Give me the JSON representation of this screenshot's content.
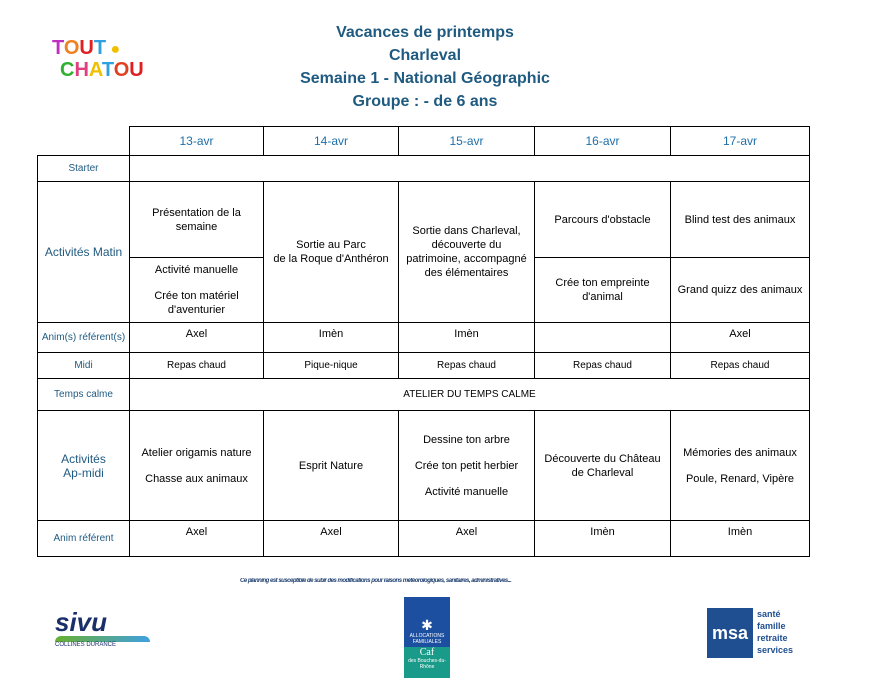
{
  "header": {
    "logo_text": "Les Tout Chatou",
    "lines": [
      "Vacances de printemps",
      "Charleval",
      "Semaine 1 - National Géographic",
      "Groupe : - de 6 ans"
    ]
  },
  "dates": [
    "13-avr",
    "14-avr",
    "15-avr",
    "16-avr",
    "17-avr"
  ],
  "rows": {
    "starter": "Starter",
    "matin": "Activités Matin",
    "anim": "Anim(s) référent(s)",
    "midi": "Midi",
    "calme": "Temps calme",
    "apmidi": "Activités Ap-midi",
    "animref": "Anim référent"
  },
  "matin": {
    "d1_top": "Présentation de la semaine",
    "d1_bottom": [
      "Activité manuelle",
      "Crée ton matériel d'aventurier"
    ],
    "d2": [
      "Sortie au Parc",
      "de la Roque d'Anthéron"
    ],
    "d3": "Sortie dans Charleval, découverte du patrimoine, accompagné des élémentaires",
    "d4_top": "Parcours d'obstacle",
    "d4_bottom": "Crée ton empreinte d'animal",
    "d5_top": "Blind test des animaux",
    "d5_bottom": "Grand quizz des animaux"
  },
  "anim_matin": [
    "Axel",
    "Imèn",
    "Imèn",
    "",
    "Axel"
  ],
  "midi": [
    "Repas chaud",
    "Pique-nique",
    "Repas chaud",
    "Repas chaud",
    "Repas chaud"
  ],
  "calme": "ATELIER DU TEMPS CALME",
  "apmidi": {
    "d1": [
      "Atelier origamis nature",
      "Chasse aux animaux"
    ],
    "d2": "Esprit Nature",
    "d3": [
      "Dessine ton arbre",
      "Crée ton petit herbier",
      "Activité manuelle"
    ],
    "d4": "Découverte du Château de Charleval",
    "d5": [
      "Mémories des animaux",
      "Poule, Renard, Vipère"
    ]
  },
  "anim_apmidi": [
    "Axel",
    "Axel",
    "Axel",
    "Imèn",
    "Imèn"
  ],
  "footer": {
    "note": "Ce planning est susceptible de subir des modifications pour raisons météorologiques, sanitaires, administratives...",
    "sivu": "SIVU",
    "sivu_sub": "COLLINES DURANCE",
    "caf": [
      "ALLOCATIONS FAMILIALES",
      "Caf",
      "des Bouches-du-Rhône"
    ],
    "msa": "msa",
    "msa_lines": [
      "santé",
      "famille",
      "retraite",
      "services"
    ]
  }
}
